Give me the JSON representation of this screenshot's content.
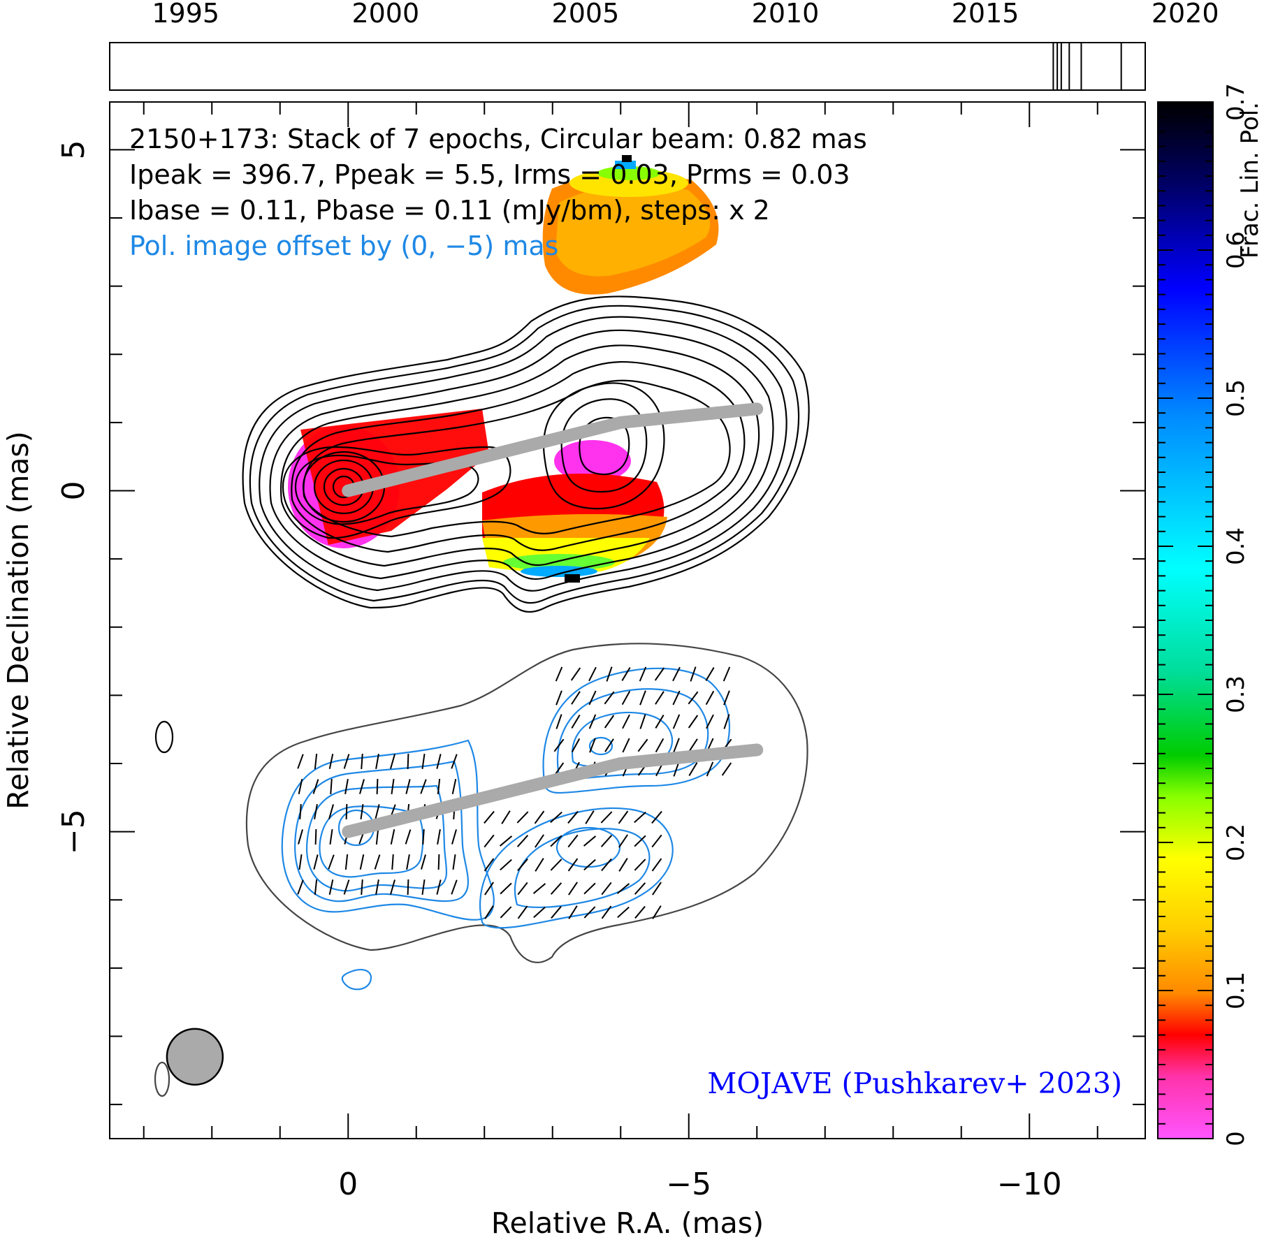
{
  "chart_data": {
    "type": "contour",
    "annotation": {
      "line1": "2150+173: Stack of 7 epochs, Circular beam: 0.82 mas",
      "line2": "Ipeak = 396.7, Ppeak = 5.5, Irms = 0.03, Prms = 0.03",
      "line3": "Ibase = 0.11, Pbase = 0.11 (mJy/bm), steps: x 2",
      "line4": "Pol. image offset by (0, −5) mas"
    },
    "credit": "MOJAVE (Pushkarev+ 2023)",
    "xlabel": "Relative R.A. (mas)",
    "ylabel": "Relative Declination (mas)",
    "xlim": [
      3.5,
      -11.7
    ],
    "ylim": [
      -9.5,
      5.7
    ],
    "xticks_major": [
      {
        "value": 0,
        "label": "0"
      },
      {
        "value": -5,
        "label": "−5"
      },
      {
        "value": -10,
        "label": "−10"
      }
    ],
    "yticks_major": [
      {
        "value": 5,
        "label": "5"
      },
      {
        "value": 0,
        "label": "0"
      },
      {
        "value": -5,
        "label": "−5"
      }
    ],
    "beam_mas": 0.82,
    "timeline": {
      "tick_years": [
        1995,
        2000,
        2005,
        2010,
        2015,
        2020
      ],
      "xlim": [
        1993.1,
        2019.0
      ],
      "epoch_years": [
        2016.7,
        2016.8,
        2016.9,
        2017.1,
        2017.4,
        2018.4,
        2019.0
      ]
    },
    "colorbar": {
      "label": "Frac. Lin. Pol.",
      "min": 0,
      "max": 0.7,
      "ticks": [
        {
          "value": 0,
          "label": "0"
        },
        {
          "value": 0.1,
          "label": "0.1"
        },
        {
          "value": 0.2,
          "label": "0.2"
        },
        {
          "value": 0.3,
          "label": "0.3"
        },
        {
          "value": 0.4,
          "label": "0.4"
        },
        {
          "value": 0.5,
          "label": "0.5"
        },
        {
          "value": 0.6,
          "label": "0.6"
        },
        {
          "value": 0.7,
          "label": "0.7"
        }
      ]
    },
    "ridgeline": [
      [
        0,
        0
      ],
      [
        -2,
        0.5
      ],
      [
        -4,
        1.0
      ],
      [
        -6,
        1.2
      ]
    ],
    "polarization_offset": [
      0,
      -5
    ],
    "colors": {
      "total_intensity_contours": "#000000",
      "pol_intensity_contours": "#1e88e5",
      "ridgeline": "#aaaaaa",
      "beam_fill": "#aaaaaa",
      "credit": "#0000ff",
      "offset_note": "#1e88e5"
    }
  }
}
